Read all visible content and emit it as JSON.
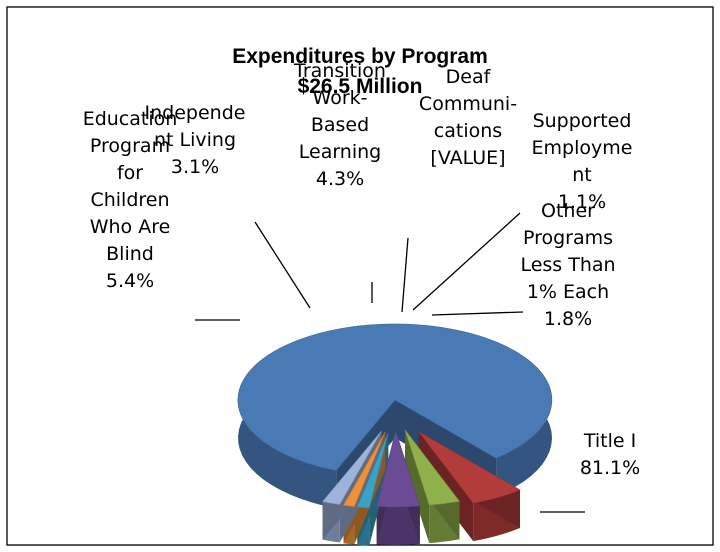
{
  "chart_data": {
    "type": "pie",
    "title": "Expenditures by Program",
    "subtitle": "$26.5 Million",
    "style": "3d exploded",
    "slices": [
      {
        "id": "title1",
        "label_lines": [
          "Title I",
          "81.1%"
        ],
        "value": 81.1,
        "color": "#4a7ab5"
      },
      {
        "id": "edu",
        "label_lines": [
          "Education",
          "Program",
          "for",
          "Children",
          "Who Are",
          "Blind",
          "5.4%"
        ],
        "value": 5.4,
        "color": "#b23c3a"
      },
      {
        "id": "ind",
        "label_lines": [
          "Independe",
          "nt Living",
          "3.1%"
        ],
        "value": 3.1,
        "color": "#8fb04a"
      },
      {
        "id": "trans",
        "label_lines": [
          "Transition",
          "Work-",
          "Based",
          "Learning",
          "4.3%"
        ],
        "value": 4.3,
        "color": "#6a4c95"
      },
      {
        "id": "deaf",
        "label_lines": [
          "Deaf",
          "Communi-",
          "cations",
          "[VALUE]"
        ],
        "value": 1.2,
        "color": "#3aa2c2"
      },
      {
        "id": "supp",
        "label_lines": [
          "Supported",
          "Employme",
          "nt",
          "1.1%"
        ],
        "value": 1.1,
        "color": "#f0913a"
      },
      {
        "id": "other",
        "label_lines": [
          "Other",
          "Programs",
          "Less Than",
          "1% Each",
          "1.8%"
        ],
        "value": 1.8,
        "color": "#9db3da"
      }
    ]
  }
}
